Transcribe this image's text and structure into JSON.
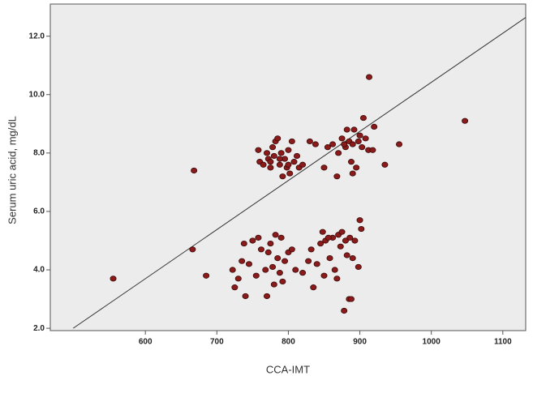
{
  "chart_data": {
    "type": "scatter",
    "x_label": "CCA-IMT",
    "y_label": "Serum uric acid, mg/dL",
    "xlim": [
      467,
      1132
    ],
    "ylim": [
      1.92,
      13.1
    ],
    "xticks": [
      600,
      700,
      800,
      900,
      1000,
      1100
    ],
    "yticks": [
      {
        "value": 2,
        "label": "2.0"
      },
      {
        "value": 4,
        "label": "4.0"
      },
      {
        "value": 6,
        "label": "6.0"
      },
      {
        "value": 8,
        "label": "8.0"
      },
      {
        "value": 10,
        "label": "10.0"
      },
      {
        "value": 12,
        "label": "12.0"
      }
    ],
    "point_color": "#8b1a1a",
    "fit_line": {
      "x": [
        499,
        1132
      ],
      "y": [
        2.0,
        12.64
      ],
      "color": "#333333"
    },
    "x": [
      555,
      668,
      666,
      685,
      913,
      1047,
      955,
      935,
      920,
      905,
      758,
      760,
      765,
      770,
      772,
      775,
      778,
      780,
      782,
      785,
      788,
      790,
      792,
      795,
      798,
      800,
      802,
      805,
      808,
      812,
      815,
      820,
      775,
      788,
      800,
      830,
      838,
      850,
      855,
      862,
      868,
      870,
      875,
      880,
      882,
      885,
      888,
      890,
      892,
      895,
      898,
      900,
      903,
      908,
      912,
      918,
      878,
      890,
      722,
      725,
      730,
      735,
      738,
      740,
      745,
      750,
      755,
      758,
      762,
      768,
      770,
      772,
      775,
      778,
      780,
      782,
      785,
      788,
      790,
      792,
      795,
      800,
      805,
      810,
      820,
      828,
      832,
      835,
      840,
      845,
      848,
      850,
      852,
      858,
      862,
      865,
      868,
      870,
      873,
      875,
      878,
      880,
      882,
      885,
      888,
      890,
      893,
      898,
      900,
      902,
      886,
      856
    ],
    "values": [
      3.7,
      7.4,
      4.7,
      3.8,
      10.6,
      9.1,
      8.3,
      7.6,
      8.9,
      9.2,
      8.1,
      7.7,
      7.6,
      8.0,
      7.8,
      7.5,
      8.2,
      7.9,
      8.4,
      8.5,
      7.6,
      8.0,
      7.2,
      7.8,
      7.5,
      8.1,
      7.3,
      8.4,
      7.7,
      7.9,
      7.5,
      7.6,
      7.7,
      7.8,
      7.6,
      8.4,
      8.3,
      7.5,
      8.2,
      8.3,
      7.2,
      8.0,
      8.5,
      8.2,
      8.8,
      8.4,
      7.7,
      8.3,
      8.8,
      7.5,
      8.4,
      8.6,
      8.2,
      8.5,
      8.1,
      8.1,
      8.3,
      7.3,
      4.0,
      3.4,
      3.7,
      4.3,
      4.9,
      3.1,
      4.2,
      5.0,
      3.8,
      5.1,
      4.7,
      4.0,
      3.1,
      4.6,
      4.9,
      4.1,
      3.5,
      5.2,
      4.4,
      3.9,
      5.1,
      3.6,
      4.3,
      4.6,
      4.7,
      4.0,
      3.9,
      4.3,
      4.7,
      3.4,
      4.2,
      4.9,
      5.3,
      3.8,
      5.0,
      4.4,
      5.1,
      4.0,
      3.7,
      5.2,
      4.8,
      5.3,
      2.6,
      5.0,
      4.5,
      3.0,
      3.0,
      4.4,
      5.0,
      4.1,
      5.7,
      5.4,
      5.1,
      5.1
    ]
  }
}
